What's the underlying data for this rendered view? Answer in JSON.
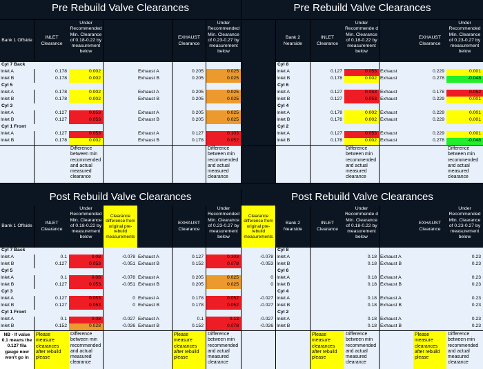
{
  "pre": {
    "title": "Pre Rebuild Valve Clearances",
    "bank1": {
      "header": {
        "bank": "Bank 1 Offside",
        "inlet": "INLET Clearance",
        "under_inlet": "Under Recommended Min. Clearance of 0.18-0.22 by measurement below",
        "exhaust": "EXHAUST Clearance",
        "under_exhaust": "Under Recommended Min. Clearance of 0.23-0.27 by measurement below"
      },
      "groups": [
        {
          "cyl": "Cyl 7 Back",
          "rows": [
            {
              "label": "Inlet A",
              "inlet": "0.178",
              "under": "0.002",
              "ex_label": "Exhaust A",
              "exhaust": "0.205",
              "ex_under": "0.025"
            },
            {
              "label": "Inlet B",
              "inlet": "0.178",
              "under": "0.002",
              "ex_label": "Exhaust B",
              "exhaust": "0.205",
              "ex_under": "0.025"
            }
          ]
        },
        {
          "cyl": "Cyl 5",
          "rows": [
            {
              "label": "Inlet A",
              "inlet": "0.178",
              "under": "0.002",
              "ex_label": "Exhaust A",
              "exhaust": "0.205",
              "ex_under": "0.025"
            },
            {
              "label": "Inlet B",
              "inlet": "0.178",
              "under": "0.002",
              "ex_label": "Exhaust B",
              "exhaust": "0.205",
              "ex_under": "0.025"
            }
          ]
        },
        {
          "cyl": "Cyl 3",
          "rows": [
            {
              "label": "Inlet A",
              "inlet": "0.127",
              "under": "0.053",
              "ex_label": "Exhaust A",
              "exhaust": "0.205",
              "ex_under": "0.025"
            },
            {
              "label": "Inlet B",
              "inlet": "0.127",
              "under": "0.053",
              "ex_label": "Exhaust B",
              "exhaust": "0.205",
              "ex_under": "0.025"
            }
          ]
        },
        {
          "cyl": "Cyl 1 Front",
          "rows": [
            {
              "label": "Inlet A",
              "inlet": "0.127",
              "under": "0.053",
              "ex_label": "Exhaust A",
              "exhaust": "0.127",
              "ex_under": "0.103"
            },
            {
              "label": "Inlet B",
              "inlet": "0.178",
              "under": "0.002",
              "ex_label": "Exhaust B",
              "exhaust": "0.178",
              "ex_under": "0.052"
            }
          ]
        }
      ],
      "note_inlet": "Difference between min recommended and actual measured clearance",
      "note_exhaust": "Difference between min recommended and actual measured clearance"
    },
    "bank2": {
      "header": {
        "bank": "Bank 2 Nearside",
        "inlet": "INLET Clearance",
        "under_inlet": "Under Recommende d Min. Clearance of 0.18-0.22 by measurement below",
        "exhaust": "EXHAUST Clearance",
        "under_exhaust": "Under Recommended Min. Clearance of 0.23-0.27 by measurement below"
      },
      "groups": [
        {
          "cyl": "Cyl 8",
          "rows": [
            {
              "label": "Inlet A",
              "inlet": "0.127",
              "under": "0.053",
              "ex_label": "Exhaust",
              "exhaust": "0.229",
              "ex_under": "0.001"
            },
            {
              "label": "Inlet B",
              "inlet": "0.178",
              "under": "0.002",
              "ex_label": "Exhaust",
              "exhaust": "0.278",
              "ex_under": "-0.048"
            }
          ]
        },
        {
          "cyl": "Cyl 6",
          "rows": [
            {
              "label": "Inlet A",
              "inlet": "0.127",
              "under": "0.053",
              "ex_label": "Exhaust",
              "exhaust": "0.178",
              "ex_under": "0.052"
            },
            {
              "label": "Inlet B",
              "inlet": "0.127",
              "under": "0.053",
              "ex_label": "Exhaust",
              "exhaust": "0.229",
              "ex_under": "0.001"
            }
          ]
        },
        {
          "cyl": "Cyl 4",
          "rows": [
            {
              "label": "Inlet A",
              "inlet": "0.178",
              "under": "0.002",
              "ex_label": "Exhaust",
              "exhaust": "0.229",
              "ex_under": "0.001"
            },
            {
              "label": "Inlet B",
              "inlet": "0.178",
              "under": "0.002",
              "ex_label": "Exhaust",
              "exhaust": "0.229",
              "ex_under": "0.001"
            }
          ]
        },
        {
          "cyl": "Cyl 2",
          "rows": [
            {
              "label": "Inlet A",
              "inlet": "0.127",
              "under": "0.053",
              "ex_label": "Exhaust",
              "exhaust": "0.229",
              "ex_under": "0.001"
            },
            {
              "label": "Inlet B",
              "inlet": "0.178",
              "under": "0.002",
              "ex_label": "Exhaust",
              "exhaust": "0.278",
              "ex_under": "-0.048"
            }
          ]
        }
      ],
      "note_inlet": "Difference between min recommended and actual measured clearance",
      "note_exhaust": "Difference between min recommended and actual measured clearance"
    }
  },
  "post": {
    "title": "Post Rebuild Valve Clearances",
    "bank1": {
      "header": {
        "bank": "Bank 1 Offside",
        "inlet": "INLET Clearance",
        "under_inlet": "Under Recommended Min. Clearance of 0.18-0.22 by measurement below",
        "diff": "Clearance difference from original pre-rebuild measurements",
        "exhaust": "EXHAUST Clearance",
        "under_exhaust": "Under Recommended Min. Clearance of 0.23-0.27 by measurement below"
      },
      "groups": [
        {
          "cyl": "Cyl 7 Back",
          "rows": [
            {
              "label": "Inlet A",
              "inlet": "0.1",
              "under": "0.08",
              "diff": "-0.078",
              "ex_label": "Exhaust A",
              "exhaust": "0.127",
              "ex_under": "0.103"
            },
            {
              "label": "Inlet B",
              "inlet": "0.127",
              "under": "0.053",
              "diff": "-0.051",
              "ex_label": "Exhaust B",
              "exhaust": "0.152",
              "ex_under": "0.078"
            }
          ]
        },
        {
          "cyl": "Cyl 5",
          "rows": [
            {
              "label": "Inlet A",
              "inlet": "0.1",
              "under": "0.08",
              "diff": "-0.078",
              "ex_label": "Exhaust A",
              "exhaust": "0.205",
              "ex_under": "0.025"
            },
            {
              "label": "Inlet B",
              "inlet": "0.127",
              "under": "0.053",
              "diff": "-0.051",
              "ex_label": "Exhaust B",
              "exhaust": "0.205",
              "ex_under": "0.025"
            }
          ]
        },
        {
          "cyl": "Cyl 3",
          "rows": [
            {
              "label": "Inlet A",
              "inlet": "0.127",
              "under": "0.053",
              "diff": "0",
              "ex_label": "Exhaust A",
              "exhaust": "0.178",
              "ex_under": "0.052"
            },
            {
              "label": "Inlet B",
              "inlet": "0.127",
              "under": "0.053",
              "diff": "0",
              "ex_label": "Exhaust B",
              "exhaust": "0.178",
              "ex_under": "0.052"
            }
          ]
        },
        {
          "cyl": "Cyl 1 Front",
          "rows": [
            {
              "label": "Inlet A",
              "inlet": "0.1",
              "under": "0.08",
              "diff": "-0.027",
              "ex_label": "Exhaust A",
              "exhaust": "0.1",
              "ex_under": "0.13"
            },
            {
              "label": "Inlet B",
              "inlet": "0.152",
              "under": "0.028",
              "diff": "-0.026",
              "ex_label": "Exhaust B",
              "exhaust": "0.152",
              "ex_under": "0.078"
            }
          ]
        }
      ],
      "nb": "NB - If value 0.1 means the 0.127 fila gauge now won't go in",
      "please": "Please measure clearances after rebuild please",
      "note_inlet": "Difference between min recommended and actual measured clearance",
      "please_ex": "Please measure clearances after rebuild please",
      "note_exhaust": "Difference between min recommended and actual measured clearance"
    },
    "bank2": {
      "header": {
        "diff": "Clearance difference from original pre-rebuild measurements",
        "bank": "Bank 2 Nearside",
        "inlet": "INLET Clearance",
        "under_inlet": "Under Recommende d Min. Clearance of 0.18-0.22 by measurement below",
        "exhaust": "EXHAUST Clearance",
        "under_exhaust": "Under Recommended Min. Clearance of 0.23-0.27 by measurement below"
      },
      "groups": [
        {
          "cyl": "Cyl 8",
          "rows": [
            {
              "diff": "-0.078",
              "label": "Inlet A",
              "inlet": "0.18",
              "ex_label": "Exhaust A",
              "ex_under": "0.23"
            },
            {
              "diff": "-0.053",
              "label": "Inlet B",
              "inlet": "0.18",
              "ex_label": "Exhaust B",
              "ex_under": "0.23"
            }
          ]
        },
        {
          "cyl": "Cyl 6",
          "rows": [
            {
              "diff": "0",
              "label": "Inlet A",
              "inlet": "0.18",
              "ex_label": "Exhaust A",
              "ex_under": "0.23"
            },
            {
              "diff": "0",
              "label": "Inlet B",
              "inlet": "0.18",
              "ex_label": "Exhaust B",
              "ex_under": "0.23"
            }
          ]
        },
        {
          "cyl": "Cyl 4",
          "rows": [
            {
              "diff": "-0.027",
              "label": "Inlet A",
              "inlet": "0.18",
              "ex_label": "Exhaust A",
              "ex_under": "0.23"
            },
            {
              "diff": "-0.027",
              "label": "Inlet B",
              "inlet": "0.18",
              "ex_label": "Exhaust B",
              "ex_under": "0.23"
            }
          ]
        },
        {
          "cyl": "Cyl 2",
          "rows": [
            {
              "diff": "-0.027",
              "label": "Inlet A",
              "inlet": "0.18",
              "ex_label": "Exhaust A",
              "ex_under": "0.23"
            },
            {
              "diff": "-0.026",
              "label": "Inlet B",
              "inlet": "0.18",
              "ex_label": "Exhaust B",
              "ex_under": "0.23"
            }
          ]
        }
      ],
      "please": "Please measure clearances after rebuild please",
      "note_inlet": "Difference between min recommended and actual measured clearance",
      "please_ex": "Please measure clearances after rebuild please",
      "note_exhaust": "Difference between min recommended and actual measured clearance"
    }
  },
  "colors": {
    "orange": "#ec9a2e",
    "red": "#ee1c25",
    "yellow": "#ffff00",
    "green": "#22ee2b",
    "dark": "#0c1522",
    "light": "#e8f1fb"
  }
}
